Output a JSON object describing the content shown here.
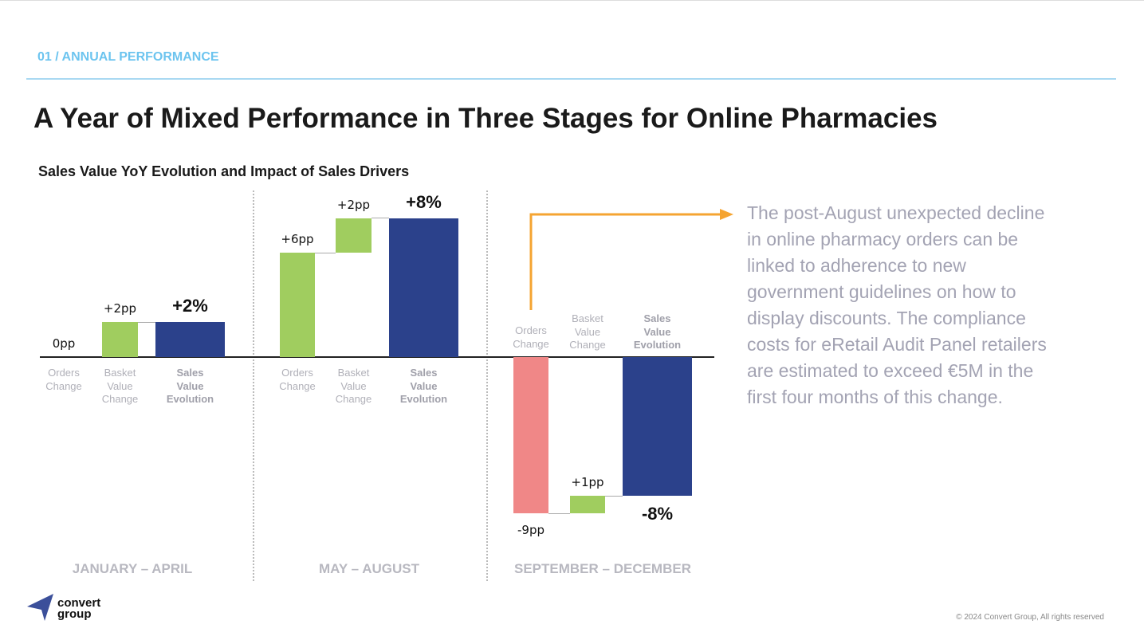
{
  "header": {
    "section": "01 / ANNUAL PERFORMANCE",
    "title": "A Year of Mixed Performance in Three Stages for Online Pharmacies"
  },
  "chart_data": {
    "type": "waterfall",
    "title": "Sales Value YoY Evolution and Impact of Sales Drivers",
    "categories": [
      "Orders Change",
      "Basket Value Change",
      "Sales Value Evolution"
    ],
    "panels": [
      {
        "period": "JANUARY – APRIL",
        "values": [
          0,
          2,
          2
        ],
        "labels": [
          "0pp",
          "+2pp",
          "+2%"
        ]
      },
      {
        "period": "MAY – AUGUST",
        "values": [
          6,
          2,
          8
        ],
        "labels": [
          "+6pp",
          "+2pp",
          "+8%"
        ]
      },
      {
        "period": "SEPTEMBER – DECEMBER",
        "values": [
          -9,
          1,
          -8
        ],
        "labels": [
          "-9pp",
          "+1pp",
          "-8%"
        ]
      }
    ],
    "colors": {
      "orders_positive": "#a0cd5f",
      "orders_negative": "#f08787",
      "basket": "#a0cd5f",
      "sales": "#2b418b"
    }
  },
  "note": "The post-August unexpected decline in online pharmacy orders can be linked to adherence to new government guidelines on how to display discounts. The compliance costs for eRetail Audit Panel retailers are estimated to exceed €5M in the first four months of this change.",
  "accent": "#f5a431",
  "footer": {
    "copyright": "© 2024 Convert Group, All rights reserved",
    "logo_text": "convert group"
  }
}
